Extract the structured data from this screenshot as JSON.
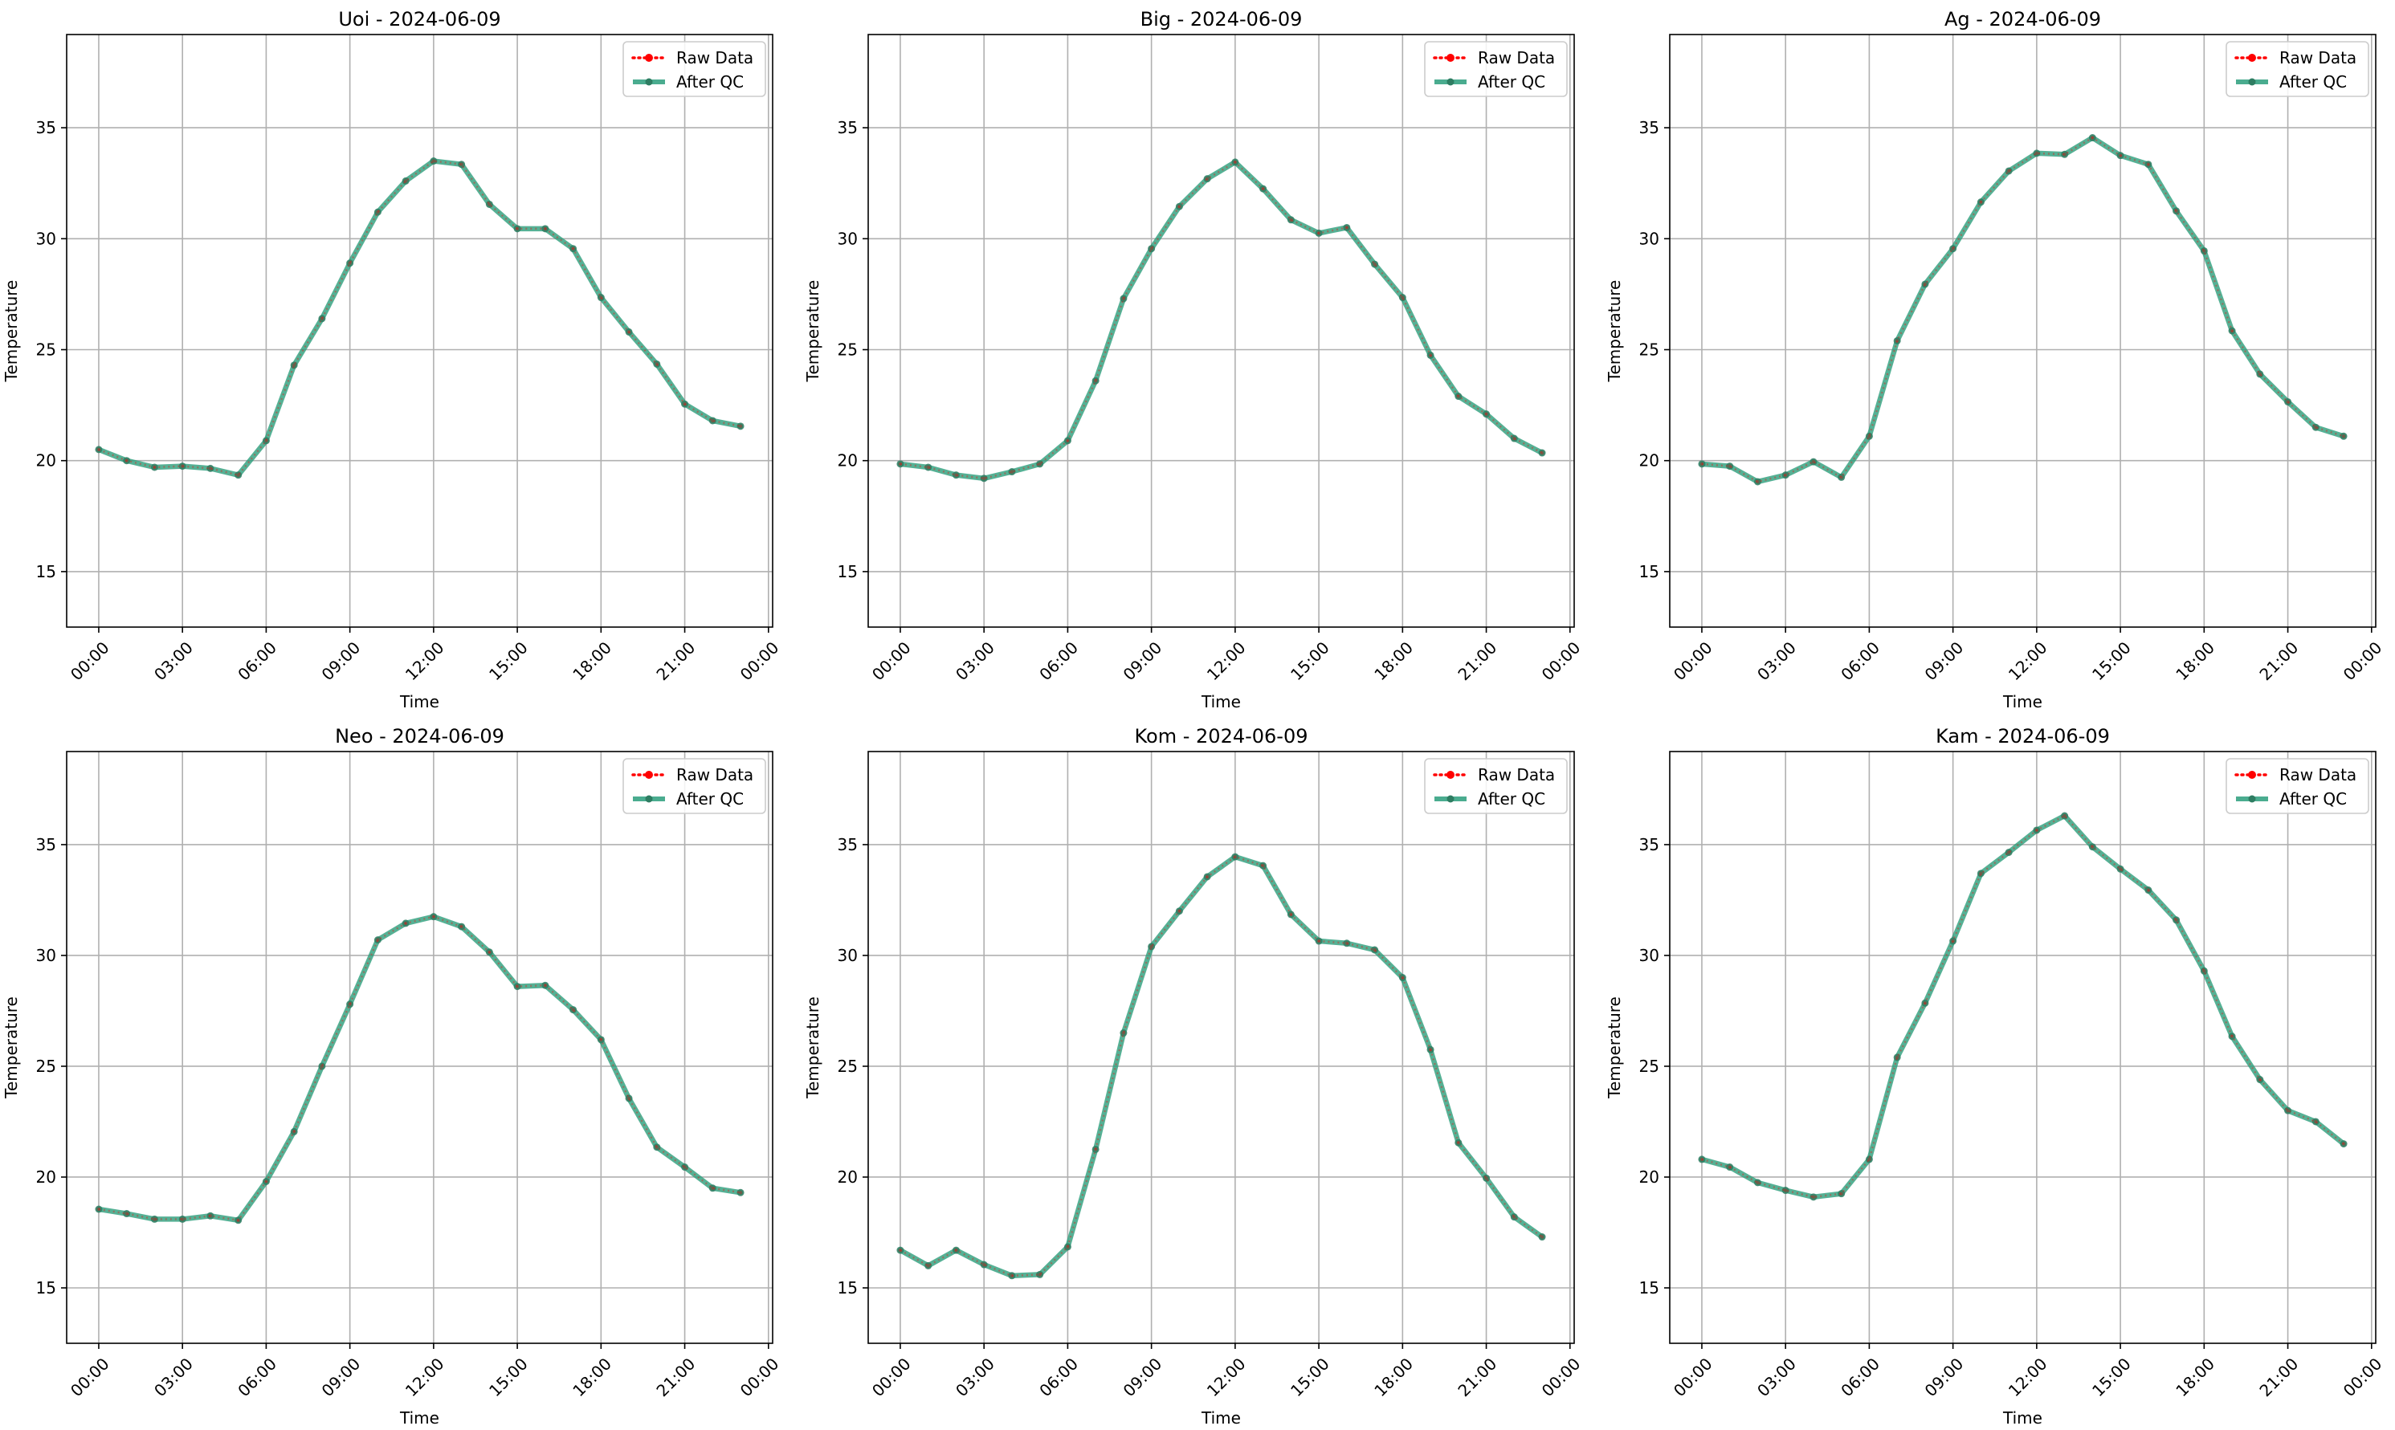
{
  "figure": {
    "background": "#ffffff"
  },
  "styles": {
    "raw_color": "#ff0000",
    "qc_color": "#2a9d7b",
    "qc_marker_color": "#2e7d62",
    "grid_color": "#b0b0b0"
  },
  "chart_data": [
    {
      "type": "line",
      "title": "Uoi - 2024-06-09",
      "xlabel": "Time",
      "ylabel": "Temperature",
      "x_ticks": [
        "00:00",
        "03:00",
        "06:00",
        "09:00",
        "12:00",
        "15:00",
        "18:00",
        "21:00",
        "00:00"
      ],
      "x_hours": [
        0,
        1,
        2,
        3,
        4,
        5,
        6,
        7,
        8,
        9,
        10,
        11,
        12,
        13,
        14,
        15,
        16,
        17,
        18,
        19,
        20,
        21,
        22,
        23
      ],
      "xlim": [
        -1.15,
        24.15
      ],
      "ylim": [
        12.5,
        39.2
      ],
      "y_ticks": [
        15,
        20,
        25,
        30,
        35
      ],
      "grid": true,
      "legend": "top-right",
      "series": [
        {
          "name": "Raw Data",
          "style": "dotted",
          "values": [
            20.5,
            20.0,
            19.7,
            19.75,
            19.65,
            19.35,
            20.9,
            24.3,
            26.4,
            28.9,
            31.2,
            32.6,
            33.5,
            33.35,
            31.55,
            30.45,
            30.45,
            29.55,
            27.35,
            25.8,
            24.35,
            22.55,
            21.8,
            21.55
          ]
        },
        {
          "name": "After QC",
          "style": "solid",
          "values": [
            20.5,
            20.0,
            19.7,
            19.75,
            19.65,
            19.35,
            20.9,
            24.3,
            26.4,
            28.9,
            31.2,
            32.6,
            33.5,
            33.35,
            31.55,
            30.45,
            30.45,
            29.55,
            27.35,
            25.8,
            24.35,
            22.55,
            21.8,
            21.55
          ]
        }
      ]
    },
    {
      "type": "line",
      "title": "Big - 2024-06-09",
      "xlabel": "Time",
      "ylabel": "Temperature",
      "x_ticks": [
        "00:00",
        "03:00",
        "06:00",
        "09:00",
        "12:00",
        "15:00",
        "18:00",
        "21:00",
        "00:00"
      ],
      "x_hours": [
        0,
        1,
        2,
        3,
        4,
        5,
        6,
        7,
        8,
        9,
        10,
        11,
        12,
        13,
        14,
        15,
        16,
        17,
        18,
        19,
        20,
        21,
        22,
        23
      ],
      "xlim": [
        -1.15,
        24.15
      ],
      "ylim": [
        12.5,
        39.2
      ],
      "y_ticks": [
        15,
        20,
        25,
        30,
        35
      ],
      "grid": true,
      "legend": "top-right",
      "series": [
        {
          "name": "Raw Data",
          "style": "dotted",
          "values": [
            19.85,
            19.7,
            19.35,
            19.2,
            19.5,
            19.85,
            20.9,
            23.6,
            27.3,
            29.55,
            31.45,
            32.7,
            33.45,
            32.25,
            30.85,
            30.25,
            30.5,
            28.85,
            27.35,
            24.75,
            22.9,
            22.1,
            21.0,
            20.35
          ]
        },
        {
          "name": "After QC",
          "style": "solid",
          "values": [
            19.85,
            19.7,
            19.35,
            19.2,
            19.5,
            19.85,
            20.9,
            23.6,
            27.3,
            29.55,
            31.45,
            32.7,
            33.45,
            32.25,
            30.85,
            30.25,
            30.5,
            28.85,
            27.35,
            24.75,
            22.9,
            22.1,
            21.0,
            20.35
          ]
        }
      ]
    },
    {
      "type": "line",
      "title": "Ag - 2024-06-09",
      "xlabel": "Time",
      "ylabel": "Temperature",
      "x_ticks": [
        "00:00",
        "03:00",
        "06:00",
        "09:00",
        "12:00",
        "15:00",
        "18:00",
        "21:00",
        "00:00"
      ],
      "x_hours": [
        0,
        1,
        2,
        3,
        4,
        5,
        6,
        7,
        8,
        9,
        10,
        11,
        12,
        13,
        14,
        15,
        16,
        17,
        18,
        19,
        20,
        21,
        22,
        23
      ],
      "xlim": [
        -1.15,
        24.15
      ],
      "ylim": [
        12.5,
        39.2
      ],
      "y_ticks": [
        15,
        20,
        25,
        30,
        35
      ],
      "grid": true,
      "legend": "top-right",
      "series": [
        {
          "name": "Raw Data",
          "style": "dotted",
          "values": [
            19.85,
            19.75,
            19.05,
            19.35,
            19.95,
            19.25,
            21.1,
            25.4,
            27.95,
            29.55,
            31.65,
            33.05,
            33.85,
            33.8,
            34.55,
            33.75,
            33.35,
            31.25,
            29.45,
            25.85,
            23.9,
            22.65,
            21.5,
            21.1
          ]
        },
        {
          "name": "After QC",
          "style": "solid",
          "values": [
            19.85,
            19.75,
            19.05,
            19.35,
            19.95,
            19.25,
            21.1,
            25.4,
            27.95,
            29.55,
            31.65,
            33.05,
            33.85,
            33.8,
            34.55,
            33.75,
            33.35,
            31.25,
            29.45,
            25.85,
            23.9,
            22.65,
            21.5,
            21.1
          ]
        }
      ]
    },
    {
      "type": "line",
      "title": "Neo - 2024-06-09",
      "xlabel": "Time",
      "ylabel": "Temperature",
      "x_ticks": [
        "00:00",
        "03:00",
        "06:00",
        "09:00",
        "12:00",
        "15:00",
        "18:00",
        "21:00",
        "00:00"
      ],
      "x_hours": [
        0,
        1,
        2,
        3,
        4,
        5,
        6,
        7,
        8,
        9,
        10,
        11,
        12,
        13,
        14,
        15,
        16,
        17,
        18,
        19,
        20,
        21,
        22,
        23
      ],
      "xlim": [
        -1.15,
        24.15
      ],
      "ylim": [
        12.5,
        39.2
      ],
      "y_ticks": [
        15,
        20,
        25,
        30,
        35
      ],
      "grid": true,
      "legend": "top-right",
      "series": [
        {
          "name": "Raw Data",
          "style": "dotted",
          "values": [
            18.55,
            18.35,
            18.1,
            18.1,
            18.25,
            18.05,
            19.8,
            22.05,
            25.0,
            27.8,
            30.7,
            31.45,
            31.75,
            31.3,
            30.15,
            28.6,
            28.65,
            27.55,
            26.2,
            23.55,
            21.35,
            20.45,
            19.5,
            19.3
          ]
        },
        {
          "name": "After QC",
          "style": "solid",
          "values": [
            18.55,
            18.35,
            18.1,
            18.1,
            18.25,
            18.05,
            19.8,
            22.05,
            25.0,
            27.8,
            30.7,
            31.45,
            31.75,
            31.3,
            30.15,
            28.6,
            28.65,
            27.55,
            26.2,
            23.55,
            21.35,
            20.45,
            19.5,
            19.3
          ]
        }
      ]
    },
    {
      "type": "line",
      "title": "Kom - 2024-06-09",
      "xlabel": "Time",
      "ylabel": "Temperature",
      "x_ticks": [
        "00:00",
        "03:00",
        "06:00",
        "09:00",
        "12:00",
        "15:00",
        "18:00",
        "21:00",
        "00:00"
      ],
      "x_hours": [
        0,
        1,
        2,
        3,
        4,
        5,
        6,
        7,
        8,
        9,
        10,
        11,
        12,
        13,
        14,
        15,
        16,
        17,
        18,
        19,
        20,
        21,
        22,
        23
      ],
      "xlim": [
        -1.15,
        24.15
      ],
      "ylim": [
        12.5,
        39.2
      ],
      "y_ticks": [
        15,
        20,
        25,
        30,
        35
      ],
      "grid": true,
      "legend": "top-right",
      "series": [
        {
          "name": "Raw Data",
          "style": "dotted",
          "values": [
            16.7,
            16.0,
            16.7,
            16.05,
            15.55,
            15.6,
            16.85,
            21.25,
            26.5,
            30.4,
            32.0,
            33.55,
            34.45,
            34.05,
            31.85,
            30.65,
            30.55,
            30.25,
            29.0,
            25.75,
            21.55,
            19.95,
            18.2,
            17.3
          ]
        },
        {
          "name": "After QC",
          "style": "solid",
          "values": [
            16.7,
            16.0,
            16.7,
            16.05,
            15.55,
            15.6,
            16.85,
            21.25,
            26.5,
            30.4,
            32.0,
            33.55,
            34.45,
            34.05,
            31.85,
            30.65,
            30.55,
            30.25,
            29.0,
            25.75,
            21.55,
            19.95,
            18.2,
            17.3
          ]
        }
      ]
    },
    {
      "type": "line",
      "title": "Kam - 2024-06-09",
      "xlabel": "Time",
      "ylabel": "Temperature",
      "x_ticks": [
        "00:00",
        "03:00",
        "06:00",
        "09:00",
        "12:00",
        "15:00",
        "18:00",
        "21:00",
        "00:00"
      ],
      "x_hours": [
        0,
        1,
        2,
        3,
        4,
        5,
        6,
        7,
        8,
        9,
        10,
        11,
        12,
        13,
        14,
        15,
        16,
        17,
        18,
        19,
        20,
        21,
        22,
        23
      ],
      "xlim": [
        -1.15,
        24.15
      ],
      "ylim": [
        12.5,
        39.2
      ],
      "y_ticks": [
        15,
        20,
        25,
        30,
        35
      ],
      "grid": true,
      "legend": "top-right",
      "series": [
        {
          "name": "Raw Data",
          "style": "dotted",
          "values": [
            20.8,
            20.45,
            19.75,
            19.4,
            19.1,
            19.25,
            20.8,
            25.4,
            27.85,
            30.65,
            33.7,
            34.65,
            35.65,
            36.3,
            34.9,
            33.9,
            32.95,
            31.6,
            29.3,
            26.35,
            24.4,
            23.0,
            22.5,
            21.5
          ]
        },
        {
          "name": "After QC",
          "style": "solid",
          "values": [
            20.8,
            20.45,
            19.75,
            19.4,
            19.1,
            19.25,
            20.8,
            25.4,
            27.85,
            30.65,
            33.7,
            34.65,
            35.65,
            36.3,
            34.9,
            33.9,
            32.95,
            31.6,
            29.3,
            26.35,
            24.4,
            23.0,
            22.5,
            21.5
          ]
        }
      ]
    }
  ]
}
